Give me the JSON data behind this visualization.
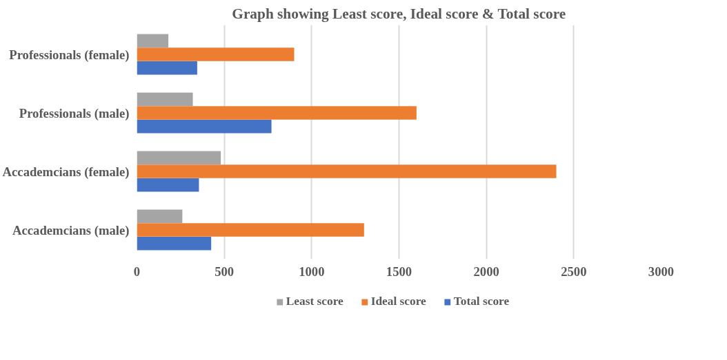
{
  "chart_data": {
    "type": "bar",
    "orientation": "horizontal",
    "title": "Graph showing Least score, Ideal score & Total score",
    "categories": [
      "Professionals (female)",
      "Professionals (male)",
      "Accademcians (female)",
      "Accademcians (male)"
    ],
    "series": [
      {
        "name": "Least score",
        "color": "#a5a5a5",
        "values": [
          180,
          320,
          480,
          260
        ]
      },
      {
        "name": "Ideal score",
        "color": "#ed7d31",
        "values": [
          900,
          1600,
          2400,
          1300
        ]
      },
      {
        "name": "Total score",
        "color": "#4472c4",
        "values": [
          345,
          770,
          355,
          425
        ]
      }
    ],
    "xlim": [
      0,
      3000
    ],
    "xticks": [
      0,
      500,
      1000,
      1500,
      2000,
      2500,
      3000
    ],
    "grid": "x",
    "legend": "bottom"
  }
}
